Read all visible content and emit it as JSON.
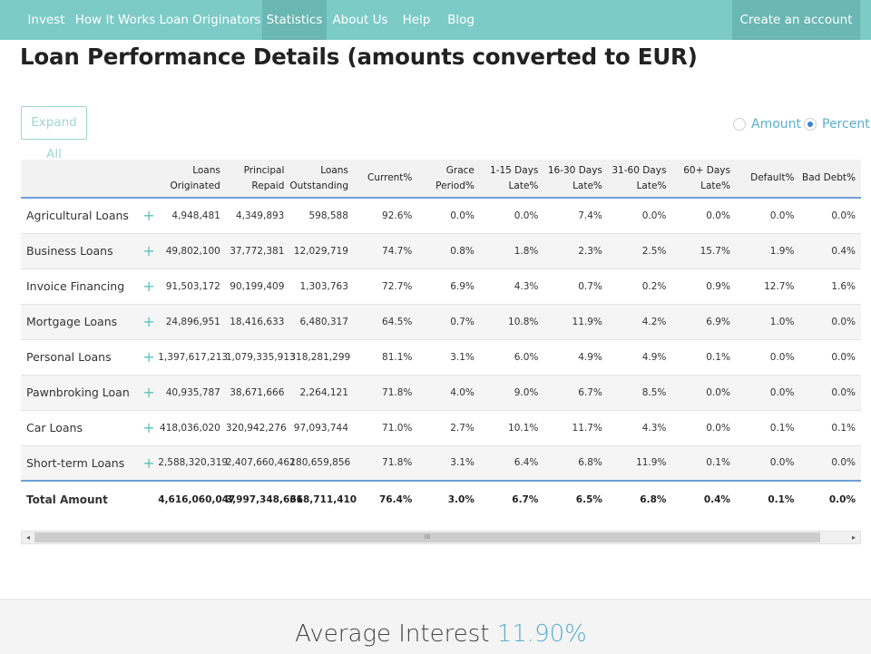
{
  "nav": {
    "items": [
      "Invest",
      "How It Works",
      "Loan Originators",
      "Statistics",
      "About Us",
      "Help",
      "Blog"
    ],
    "active": "Statistics",
    "cta": "Create an account"
  },
  "page": {
    "title": "Loan Performance Details (amounts converted to EUR)"
  },
  "controls": {
    "expand_all": "Expand All",
    "radio_amount": "Amount",
    "radio_percent": "Percent",
    "selected": "Percent"
  },
  "table": {
    "headers": [
      "",
      "",
      "Loans\nOriginated",
      "Principal\nRepaid",
      "Loans\nOutstanding",
      "Current%",
      "Grace\nPeriod%",
      "1-15 Days\nLate%",
      "16-30 Days\nLate%",
      "31-60 Days\nLate%",
      "60+ Days\nLate%",
      "Default%",
      "Bad Debt%"
    ],
    "rows": [
      [
        "Agricultural Loans",
        "4,948,481",
        "4,349,893",
        "598,588",
        "92.6%",
        "0.0%",
        "0.0%",
        "7.4%",
        "0.0%",
        "0.0%",
        "0.0%",
        "0.0%"
      ],
      [
        "Business Loans",
        "49,802,100",
        "37,772,381",
        "12,029,719",
        "74.7%",
        "0.8%",
        "1.8%",
        "2.3%",
        "2.5%",
        "15.7%",
        "1.9%",
        "0.4%"
      ],
      [
        "Invoice Financing",
        "91,503,172",
        "90,199,409",
        "1,303,763",
        "72.7%",
        "6.9%",
        "4.3%",
        "0.7%",
        "0.2%",
        "0.9%",
        "12.7%",
        "1.6%"
      ],
      [
        "Mortgage Loans",
        "24,896,951",
        "18,416,633",
        "6,480,317",
        "64.5%",
        "0.7%",
        "10.8%",
        "11.9%",
        "4.2%",
        "6.9%",
        "1.0%",
        "0.0%"
      ],
      [
        "Personal Loans",
        "1,397,617,213",
        "1,079,335,913",
        "318,281,299",
        "81.1%",
        "3.1%",
        "6.0%",
        "4.9%",
        "4.9%",
        "0.1%",
        "0.0%",
        "0.0%"
      ],
      [
        "Pawnbroking Loan",
        "40,935,787",
        "38,671,666",
        "2,264,121",
        "71.8%",
        "4.0%",
        "9.0%",
        "6.7%",
        "8.5%",
        "0.0%",
        "0.0%",
        "0.0%"
      ],
      [
        "Car Loans",
        "418,036,020",
        "320,942,276",
        "97,093,744",
        "71.0%",
        "2.7%",
        "10.1%",
        "11.7%",
        "4.3%",
        "0.0%",
        "0.1%",
        "0.1%"
      ],
      [
        "Short-term Loans",
        "2,588,320,319",
        "2,407,660,462",
        "180,659,856",
        "71.8%",
        "3.1%",
        "6.4%",
        "6.8%",
        "11.9%",
        "0.1%",
        "0.0%",
        "0.0%"
      ]
    ],
    "plus_glyph": "+",
    "total": [
      "Total Amount",
      "4,616,060,047",
      "3,997,348,636",
      "618,711,410",
      "76.4%",
      "3.0%",
      "6.7%",
      "6.5%",
      "6.8%",
      "0.4%",
      "0.1%",
      "0.0%"
    ]
  },
  "scrollbar": {
    "grip": "III"
  },
  "summary": {
    "label": "Average Interest",
    "value": "11.90%"
  },
  "colors": {
    "nav_bg": "#7ccbc7",
    "nav_active": "#6ab7b3",
    "accent": "#5fc2bd",
    "link": "#5aaecf",
    "table_rule": "#6ea0d6"
  }
}
